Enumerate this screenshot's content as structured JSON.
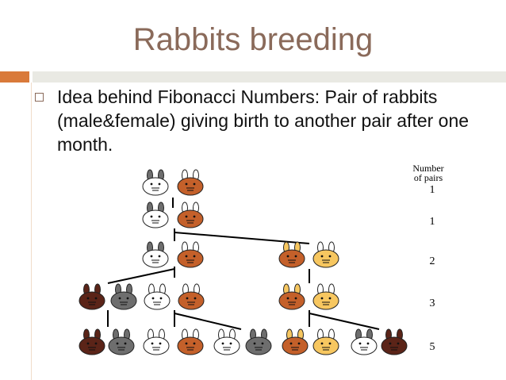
{
  "slide": {
    "title": "Rabbits breeding",
    "bullet": "Idea behind Fibonacci Numbers: Pair of rabbits (male&female) giving birth to another pair after one month."
  },
  "legend": {
    "line1": "Number",
    "line2": "of pairs",
    "counts": [
      "1",
      "1",
      "2",
      "3",
      "5"
    ]
  },
  "colors": {
    "title": "#8a6a5a",
    "accent_orange": "#d97a3a",
    "accent_gray": "#e9e9e3",
    "rabbit_white": "#ffffff",
    "rabbit_gray": "#6e6e6e",
    "rabbit_brown": "#c4602a",
    "rabbit_darkbrown": "#5b2418",
    "rabbit_yellow": "#f7c760"
  },
  "generations": [
    {
      "count": 1,
      "rabbits": [
        "white-gray-ear",
        "brown"
      ]
    },
    {
      "count": 1,
      "rabbits": [
        "white-gray-ear",
        "brown"
      ]
    },
    {
      "count": 2,
      "rabbits": [
        "white-gray-ear",
        "brown",
        "brown-yellow-ear",
        "yellow"
      ]
    },
    {
      "count": 3,
      "rabbits": [
        "darkbrown",
        "gray",
        "white",
        "brown",
        "brown-yellow-ear",
        "yellow"
      ]
    },
    {
      "count": 5,
      "rabbits": [
        "darkbrown",
        "gray",
        "white",
        "brown",
        "white",
        "gray",
        "brown-yellow-ear",
        "yellow",
        "white-gray-ear",
        "darkbrown"
      ]
    }
  ]
}
